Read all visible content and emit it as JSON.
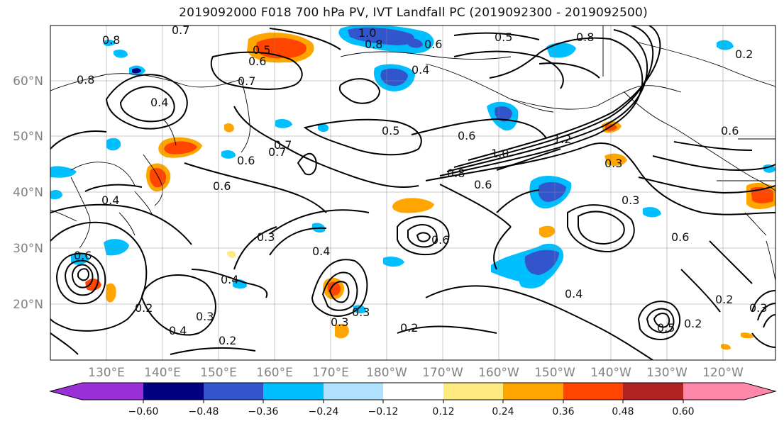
{
  "title": "2019092000 F018 700 hPa PV, IVT Landfall PC (2019092300 - 2019092500)",
  "lat_labels": [
    "60°N",
    "50°N",
    "40°N",
    "30°N",
    "20°N"
  ],
  "lon_labels": [
    "130°E",
    "140°E",
    "150°E",
    "160°E",
    "170°E",
    "180°W",
    "170°W",
    "160°W",
    "150°W",
    "140°W",
    "130°W",
    "120°W"
  ],
  "colorbar": {
    "colors": [
      "#9b30d9",
      "#000080",
      "#3355cc",
      "#00bfff",
      "#b0e2ff",
      "#ffffff",
      "#ffea80",
      "#ffa500",
      "#ff4500",
      "#b22222",
      "#ff88aa"
    ],
    "ticks": [
      "−0.60",
      "−0.48",
      "−0.36",
      "−0.24",
      "−0.12",
      "0.12",
      "0.24",
      "0.36",
      "0.48",
      "0.60"
    ]
  },
  "contour_labels": [
    {
      "text": "0.7"
    },
    {
      "text": "0.5"
    },
    {
      "text": "0.6"
    },
    {
      "text": "1.0"
    },
    {
      "text": "0.8"
    },
    {
      "text": "0.6"
    },
    {
      "text": "0.4"
    },
    {
      "text": "0.5"
    },
    {
      "text": "0.8"
    },
    {
      "text": "0.8"
    },
    {
      "text": "0.8"
    },
    {
      "text": "0.4"
    },
    {
      "text": "0.7"
    },
    {
      "text": "0.5"
    },
    {
      "text": "0.6"
    },
    {
      "text": "0.7"
    },
    {
      "text": "0.6"
    },
    {
      "text": "0.6"
    },
    {
      "text": "1.0"
    },
    {
      "text": "0.8"
    },
    {
      "text": "1.2"
    },
    {
      "text": "0.6"
    },
    {
      "text": "0.3"
    },
    {
      "text": "0.4"
    },
    {
      "text": "0.3"
    },
    {
      "text": "0.4"
    },
    {
      "text": "0.6"
    },
    {
      "text": "0.4"
    },
    {
      "text": "0.3"
    },
    {
      "text": "0.3"
    },
    {
      "text": "0.6"
    },
    {
      "text": "0.4"
    },
    {
      "text": "0.3"
    },
    {
      "text": "0.2"
    },
    {
      "text": "0.4"
    },
    {
      "text": "0.2"
    },
    {
      "text": "0.2"
    },
    {
      "text": "0.3"
    },
    {
      "text": "0.2"
    },
    {
      "text": "0.6"
    },
    {
      "text": "0.2"
    },
    {
      "text": "0.5"
    },
    {
      "text": "0.2"
    },
    {
      "text": "0.3"
    },
    {
      "text": "0.6"
    },
    {
      "text": "0.7"
    }
  ]
}
